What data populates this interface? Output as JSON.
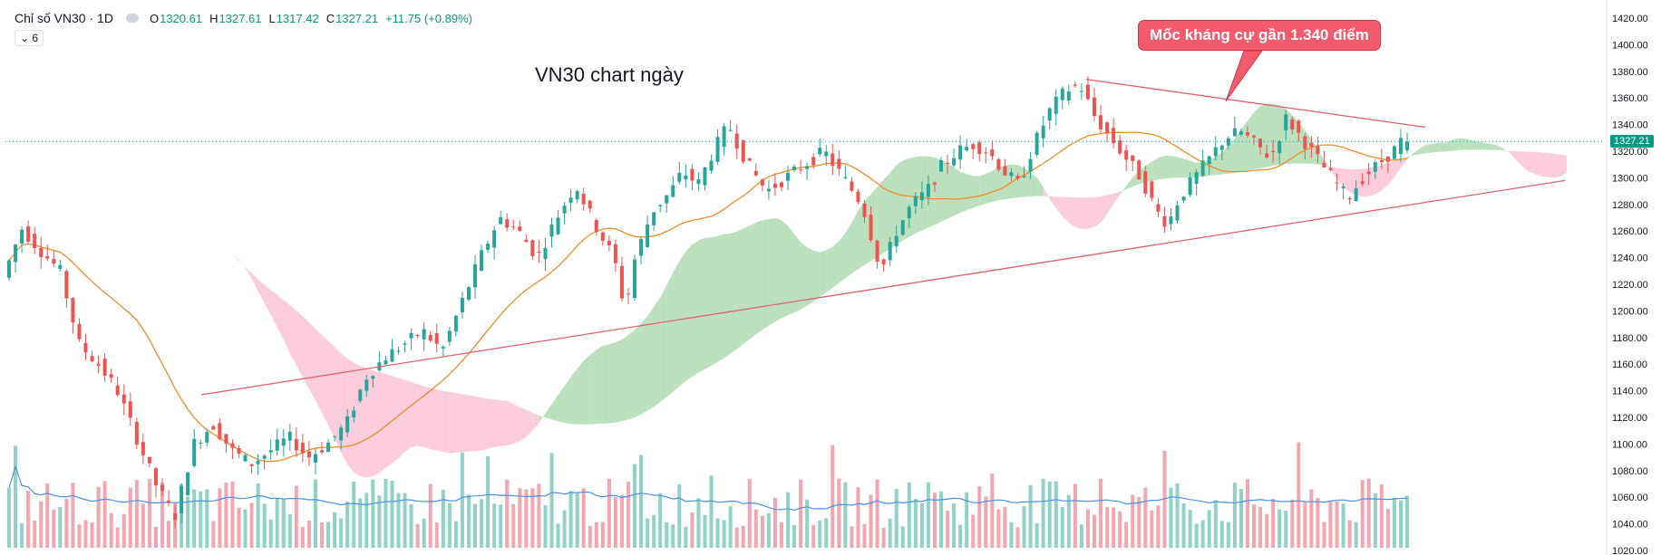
{
  "header": {
    "symbol": "Chỉ số VN30 · 1D",
    "open_label": "O",
    "open": "1320.61",
    "high_label": "H",
    "high": "1327.61",
    "low_label": "L",
    "low": "1317.42",
    "close_label": "C",
    "close": "1327.21",
    "change": "+11.75 (+0.89%)"
  },
  "indicator_toggle": "⌄ 6",
  "annotation_title": "VN30 chart ngày",
  "callout_text": "Mốc kháng cự gần 1.340 điểm",
  "last_price_label": "1327.21",
  "colors": {
    "up": "#26a69a",
    "down": "#ef5350",
    "cloud_bull": "#a5d6a7",
    "cloud_bear": "#f8bbd0",
    "ma": "#f28c28",
    "vol_ma": "#4a90e2",
    "trend": "#e06070"
  },
  "chart_data": {
    "type": "candlestick",
    "title": "VN30 chart ngày",
    "ylim": [
      1020,
      1420
    ],
    "y_ticks": [
      "1420.00",
      "1400.00",
      "1380.00",
      "1360.00",
      "1340.00",
      "1320.00",
      "1300.00",
      "1280.00",
      "1260.00",
      "1240.00",
      "1220.00",
      "1200.00",
      "1180.00",
      "1160.00",
      "1140.00",
      "1120.00",
      "1100.00",
      "1080.00",
      "1060.00",
      "1040.00",
      "1020.00"
    ],
    "last_close": 1327.21,
    "num_bars": 220,
    "price_path_keypoints": [
      [
        0,
        1225
      ],
      [
        5,
        1262
      ],
      [
        10,
        1245
      ],
      [
        15,
        1230
      ],
      [
        20,
        1175
      ],
      [
        25,
        1160
      ],
      [
        30,
        1140
      ],
      [
        35,
        1105
      ],
      [
        40,
        1070
      ],
      [
        45,
        1045
      ],
      [
        50,
        1100
      ],
      [
        55,
        1115
      ],
      [
        60,
        1095
      ],
      [
        65,
        1085
      ],
      [
        70,
        1095
      ],
      [
        75,
        1105
      ],
      [
        80,
        1090
      ],
      [
        85,
        1100
      ],
      [
        90,
        1115
      ],
      [
        95,
        1150
      ],
      [
        100,
        1165
      ],
      [
        105,
        1175
      ],
      [
        110,
        1185
      ],
      [
        115,
        1170
      ],
      [
        120,
        1205
      ],
      [
        125,
        1240
      ],
      [
        130,
        1270
      ],
      [
        135,
        1260
      ],
      [
        140,
        1240
      ],
      [
        145,
        1270
      ],
      [
        150,
        1295
      ],
      [
        155,
        1265
      ],
      [
        160,
        1240
      ],
      [
        163,
        1200
      ],
      [
        165,
        1235
      ],
      [
        170,
        1275
      ],
      [
        175,
        1290
      ],
      [
        178,
        1305
      ],
      [
        182,
        1295
      ],
      [
        186,
        1320
      ],
      [
        190,
        1340
      ],
      [
        195,
        1310
      ],
      [
        200,
        1290
      ],
      [
        205,
        1300
      ],
      [
        210,
        1310
      ],
      [
        215,
        1320
      ],
      [
        220,
        1300
      ],
      [
        225,
        1280
      ],
      [
        230,
        1230
      ],
      [
        234,
        1260
      ],
      [
        238,
        1280
      ],
      [
        242,
        1290
      ],
      [
        246,
        1310
      ],
      [
        250,
        1320
      ],
      [
        254,
        1325
      ],
      [
        258,
        1320
      ],
      [
        262,
        1305
      ],
      [
        266,
        1295
      ],
      [
        270,
        1325
      ],
      [
        274,
        1350
      ],
      [
        278,
        1365
      ],
      [
        282,
        1370
      ],
      [
        286,
        1345
      ],
      [
        290,
        1330
      ],
      [
        294,
        1315
      ],
      [
        298,
        1300
      ],
      [
        302,
        1275
      ],
      [
        305,
        1265
      ],
      [
        308,
        1285
      ],
      [
        312,
        1300
      ],
      [
        316,
        1315
      ],
      [
        320,
        1330
      ],
      [
        324,
        1335
      ],
      [
        328,
        1325
      ],
      [
        332,
        1315
      ],
      [
        336,
        1345
      ],
      [
        340,
        1330
      ],
      [
        344,
        1315
      ],
      [
        348,
        1300
      ],
      [
        352,
        1285
      ],
      [
        356,
        1300
      ],
      [
        360,
        1310
      ],
      [
        364,
        1320
      ],
      [
        366,
        1327.21
      ]
    ],
    "trendlines": [
      {
        "name": "support",
        "from": [
          1,
          1137
        ],
        "to": [
          1,
          1298
        ]
      },
      {
        "name": "resistance",
        "from": [
          1,
          1374
        ],
        "to": [
          1,
          1338
        ]
      }
    ],
    "resistance_level": 1340,
    "series": [
      {
        "name": "Price",
        "kind": "candles"
      },
      {
        "name": "MA",
        "kind": "line",
        "color": "#f28c28"
      },
      {
        "name": "Ichimoku cloud",
        "kind": "area"
      },
      {
        "name": "Volume",
        "kind": "bars"
      },
      {
        "name": "Volume MA",
        "kind": "line",
        "color": "#4a90e2"
      }
    ]
  }
}
